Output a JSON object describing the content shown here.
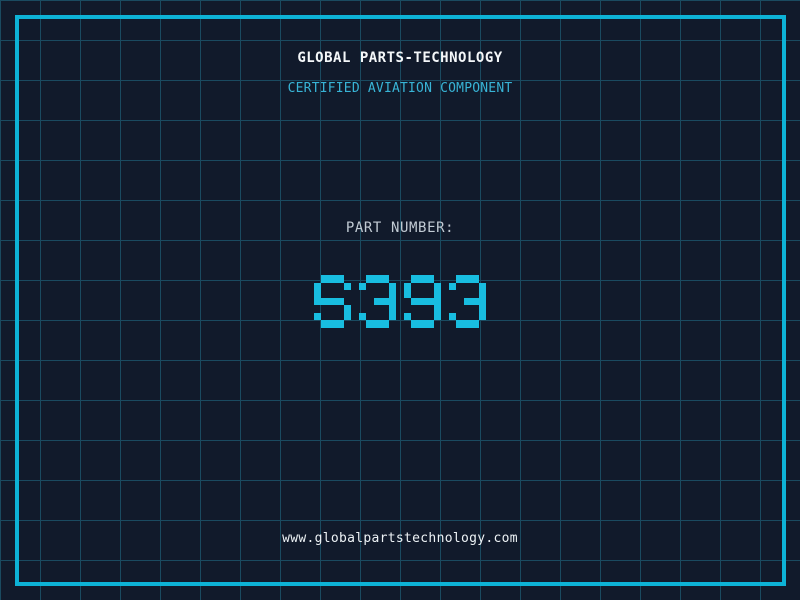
{
  "colors": {
    "background": "#111a2b",
    "grid_line": "#1a4a60",
    "frame": "#0db2d6",
    "title": "#f4f7f9",
    "subtitle": "#38b4d6",
    "part_label": "#c2cbd4",
    "part_number": "#18bde0",
    "url": "#edf2f5"
  },
  "header": {
    "title": "GLOBAL PARTS-TECHNOLOGY",
    "subtitle": "CERTIFIED AVIATION COMPONENT"
  },
  "part": {
    "label": "PART NUMBER:",
    "value": "S393"
  },
  "footer": {
    "url": "www.globalpartstechnology.com"
  }
}
